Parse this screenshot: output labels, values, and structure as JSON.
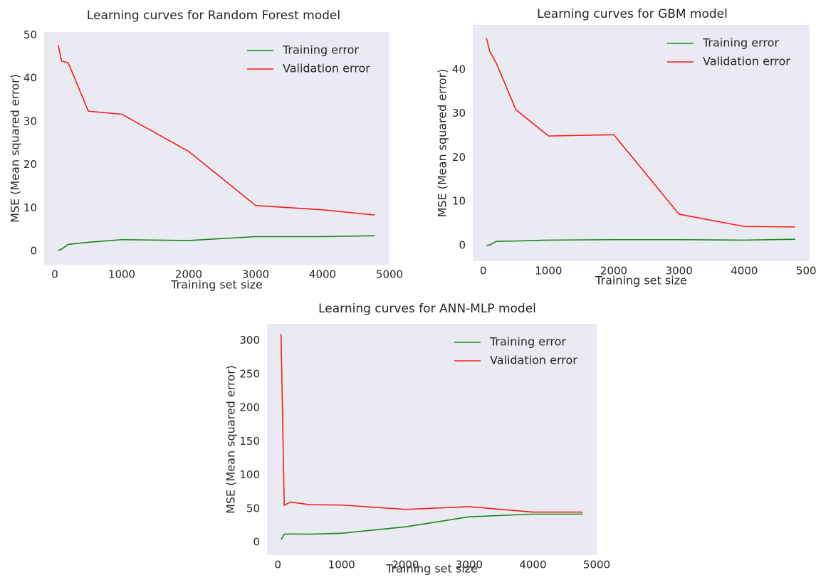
{
  "chart_data": [
    {
      "type": "line",
      "title": "Learning curves for Random Forest model",
      "xlabel": "Training set size",
      "ylabel": "MSE (Mean squared error)",
      "x": [
        50,
        100,
        200,
        500,
        1000,
        2000,
        3000,
        4000,
        4780
      ],
      "series": [
        {
          "name": "Training error",
          "color": "#138a13",
          "values": [
            0.2,
            0.5,
            1.6,
            2.1,
            2.7,
            2.5,
            3.4,
            3.4,
            3.6
          ]
        },
        {
          "name": "Validation error",
          "color": "#ff1a1a",
          "values": [
            47.7,
            44.0,
            43.6,
            32.4,
            31.7,
            23.1,
            10.6,
            9.6,
            8.4
          ]
        }
      ],
      "xlim": [
        -160,
        5000
      ],
      "ylim": [
        -3.1,
        50.7
      ],
      "xticks": [
        0,
        1000,
        2000,
        3000,
        4000,
        5000
      ],
      "yticks": [
        0,
        10,
        20,
        30,
        40,
        50
      ],
      "legend": "upper right",
      "grid": false
    },
    {
      "type": "line",
      "title": "Learning curves for GBM model",
      "xlabel": "Training set size",
      "ylabel": "MSE (Mean squared error)",
      "x": [
        50,
        100,
        200,
        500,
        1000,
        2000,
        3000,
        4000,
        4780
      ],
      "series": [
        {
          "name": "Training error",
          "color": "#138a13",
          "values": [
            0.0,
            0.1,
            0.9,
            1.0,
            1.2,
            1.3,
            1.3,
            1.2,
            1.4
          ]
        },
        {
          "name": "Validation error",
          "color": "#ff1a1a",
          "values": [
            47.2,
            44.2,
            41.5,
            30.9,
            24.9,
            25.2,
            7.1,
            4.3,
            4.2
          ]
        }
      ],
      "xlim": [
        -160,
        5000
      ],
      "ylim": [
        -3.6,
        50.2
      ],
      "xticks": [
        0,
        1000,
        2000,
        3000,
        4000,
        5000
      ],
      "yticks": [
        0,
        10,
        20,
        30,
        40
      ],
      "legend": "upper right",
      "grid": false
    },
    {
      "type": "line",
      "title": "Learning curves for ANN-MLP model",
      "xlabel": "Training set size",
      "ylabel": "MSE (Mean squared error)",
      "x": [
        50,
        100,
        200,
        500,
        1000,
        2000,
        3000,
        4000,
        4780
      ],
      "series": [
        {
          "name": "Training error",
          "color": "#138a13",
          "values": [
            4,
            12,
            12.5,
            12.2,
            13.5,
            23,
            38,
            42,
            42
          ]
        },
        {
          "name": "Validation error",
          "color": "#ff1a1a",
          "values": [
            310,
            55,
            60,
            56,
            55.5,
            49,
            53,
            45,
            45
          ]
        }
      ],
      "xlim": [
        -170,
        5000
      ],
      "ylim": [
        -19,
        325
      ],
      "xticks": [
        0,
        1000,
        2000,
        3000,
        4000,
        5000
      ],
      "yticks": [
        0,
        50,
        100,
        150,
        200,
        250,
        300
      ],
      "legend": "upper right",
      "grid": false
    }
  ]
}
